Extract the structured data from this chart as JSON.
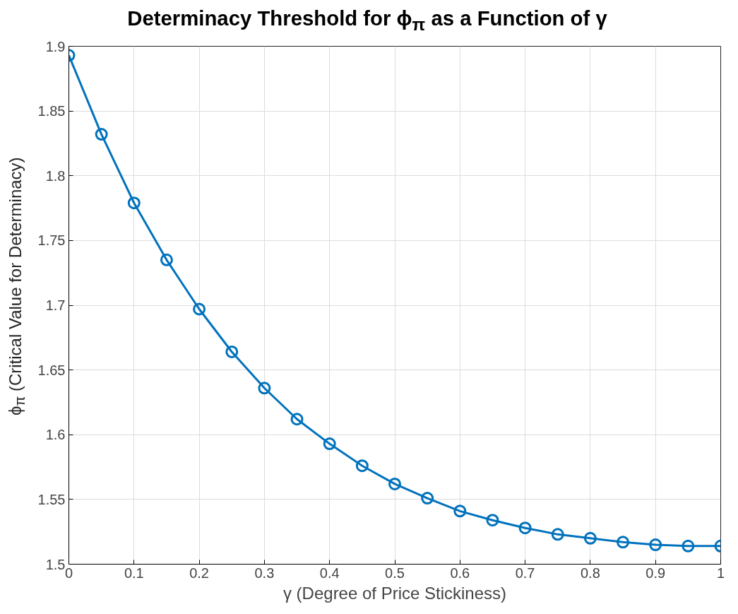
{
  "chart_data": {
    "type": "line",
    "title": "Determinacy Threshold for ϕ$_{π}$ as a Function of γ",
    "xlabel": "γ (Degree of Price Stickiness)",
    "ylabel": "ϕ$_{π}$ (Critical Value for Determinacy)",
    "x": [
      0,
      0.05,
      0.1,
      0.15,
      0.2,
      0.25,
      0.3,
      0.35,
      0.4,
      0.45,
      0.5,
      0.55,
      0.6,
      0.65,
      0.7,
      0.75,
      0.8,
      0.85,
      0.9,
      0.95,
      1
    ],
    "series": [
      {
        "color": "#0072bd",
        "values": [
          1.893,
          1.832,
          1.779,
          1.735,
          1.697,
          1.664,
          1.636,
          1.612,
          1.593,
          1.576,
          1.562,
          1.551,
          1.541,
          1.534,
          1.528,
          1.523,
          1.52,
          1.517,
          1.515,
          1.514,
          1.514
        ]
      }
    ],
    "xlim": [
      0,
      1
    ],
    "xticks": [
      0,
      0.1,
      0.2,
      0.3,
      0.4,
      0.5,
      0.6,
      0.7,
      0.8,
      0.9,
      1
    ],
    "ylim": [
      1.5,
      1.9
    ],
    "yticks": [
      1.5,
      1.55,
      1.6,
      1.65,
      1.7,
      1.75,
      1.8,
      1.85,
      1.9
    ],
    "grid": true,
    "marker": "circle",
    "line_style": "solid"
  }
}
